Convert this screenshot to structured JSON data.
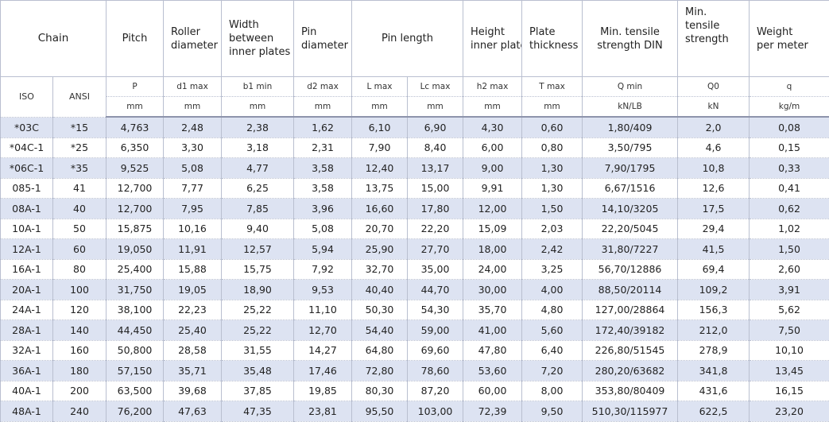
{
  "header": {
    "chain": "Chain",
    "pitch": "Pitch",
    "roller_line1": "Roller",
    "roller_line2": "diameter",
    "width_line1": "Width",
    "width_line2": "between",
    "width_line3": "inner plates",
    "pin_d_line1": "Pin",
    "pin_d_line2": "diameter",
    "pin_length": "Pin length",
    "height_line1": "Height",
    "height_line2": "inner plate",
    "plate_line1": "Plate",
    "plate_line2": "thickness",
    "tensile_din_line1": "Min. tensile",
    "tensile_din_line2": "strength DIN",
    "tensile_line1": "Min.",
    "tensile_line2": "tensile",
    "tensile_line3": "strength",
    "weight_line1": "Weight",
    "weight_line2": "per meter"
  },
  "symbols": {
    "iso": "ISO",
    "ansi": "ANSI",
    "pitch": "P",
    "roller": "d1 max",
    "width": "b1 min",
    "pin_d": "d2 max",
    "l": "L max",
    "lc": "Lc max",
    "height": "h2 max",
    "plate": "T max",
    "q_min": "Q min",
    "q0": "Q0",
    "q": "q"
  },
  "units": {
    "pitch": "mm",
    "roller": "mm",
    "width": "mm",
    "pin_d": "mm",
    "l": "mm",
    "lc": "mm",
    "height": "mm",
    "plate": "mm",
    "q_min": "kN/LB",
    "q0": "kN",
    "q": "kg/m"
  },
  "rows": [
    [
      "*03C",
      "*15",
      "4,763",
      "2,48",
      "2,38",
      "1,62",
      "6,10",
      "6,90",
      "4,30",
      "0,60",
      "1,80/409",
      "2,0",
      "0,08"
    ],
    [
      "*04C-1",
      "*25",
      "6,350",
      "3,30",
      "3,18",
      "2,31",
      "7,90",
      "8,40",
      "6,00",
      "0,80",
      "3,50/795",
      "4,6",
      "0,15"
    ],
    [
      "*06C-1",
      "*35",
      "9,525",
      "5,08",
      "4,77",
      "3,58",
      "12,40",
      "13,17",
      "9,00",
      "1,30",
      "7,90/1795",
      "10,8",
      "0,33"
    ],
    [
      "085-1",
      "41",
      "12,700",
      "7,77",
      "6,25",
      "3,58",
      "13,75",
      "15,00",
      "9,91",
      "1,30",
      "6,67/1516",
      "12,6",
      "0,41"
    ],
    [
      "08A-1",
      "40",
      "12,700",
      "7,95",
      "7,85",
      "3,96",
      "16,60",
      "17,80",
      "12,00",
      "1,50",
      "14,10/3205",
      "17,5",
      "0,62"
    ],
    [
      "10A-1",
      "50",
      "15,875",
      "10,16",
      "9,40",
      "5,08",
      "20,70",
      "22,20",
      "15,09",
      "2,03",
      "22,20/5045",
      "29,4",
      "1,02"
    ],
    [
      "12A-1",
      "60",
      "19,050",
      "11,91",
      "12,57",
      "5,94",
      "25,90",
      "27,70",
      "18,00",
      "2,42",
      "31,80/7227",
      "41,5",
      "1,50"
    ],
    [
      "16A-1",
      "80",
      "25,400",
      "15,88",
      "15,75",
      "7,92",
      "32,70",
      "35,00",
      "24,00",
      "3,25",
      "56,70/12886",
      "69,4",
      "2,60"
    ],
    [
      "20A-1",
      "100",
      "31,750",
      "19,05",
      "18,90",
      "9,53",
      "40,40",
      "44,70",
      "30,00",
      "4,00",
      "88,50/20114",
      "109,2",
      "3,91"
    ],
    [
      "24A-1",
      "120",
      "38,100",
      "22,23",
      "25,22",
      "11,10",
      "50,30",
      "54,30",
      "35,70",
      "4,80",
      "127,00/28864",
      "156,3",
      "5,62"
    ],
    [
      "28A-1",
      "140",
      "44,450",
      "25,40",
      "25,22",
      "12,70",
      "54,40",
      "59,00",
      "41,00",
      "5,60",
      "172,40/39182",
      "212,0",
      "7,50"
    ],
    [
      "32A-1",
      "160",
      "50,800",
      "28,58",
      "31,55",
      "14,27",
      "64,80",
      "69,60",
      "47,80",
      "6,40",
      "226,80/51545",
      "278,9",
      "10,10"
    ],
    [
      "36A-1",
      "180",
      "57,150",
      "35,71",
      "35,48",
      "17,46",
      "72,80",
      "78,60",
      "53,60",
      "7,20",
      "280,20/63682",
      "341,8",
      "13,45"
    ],
    [
      "40A-1",
      "200",
      "63,500",
      "39,68",
      "37,85",
      "19,85",
      "80,30",
      "87,20",
      "60,00",
      "8,00",
      "353,80/80409",
      "431,6",
      "16,15"
    ],
    [
      "48A-1",
      "240",
      "76,200",
      "47,63",
      "47,35",
      "23,81",
      "95,50",
      "103,00",
      "72,39",
      "9,50",
      "510,30/115977",
      "622,5",
      "23,20"
    ]
  ]
}
